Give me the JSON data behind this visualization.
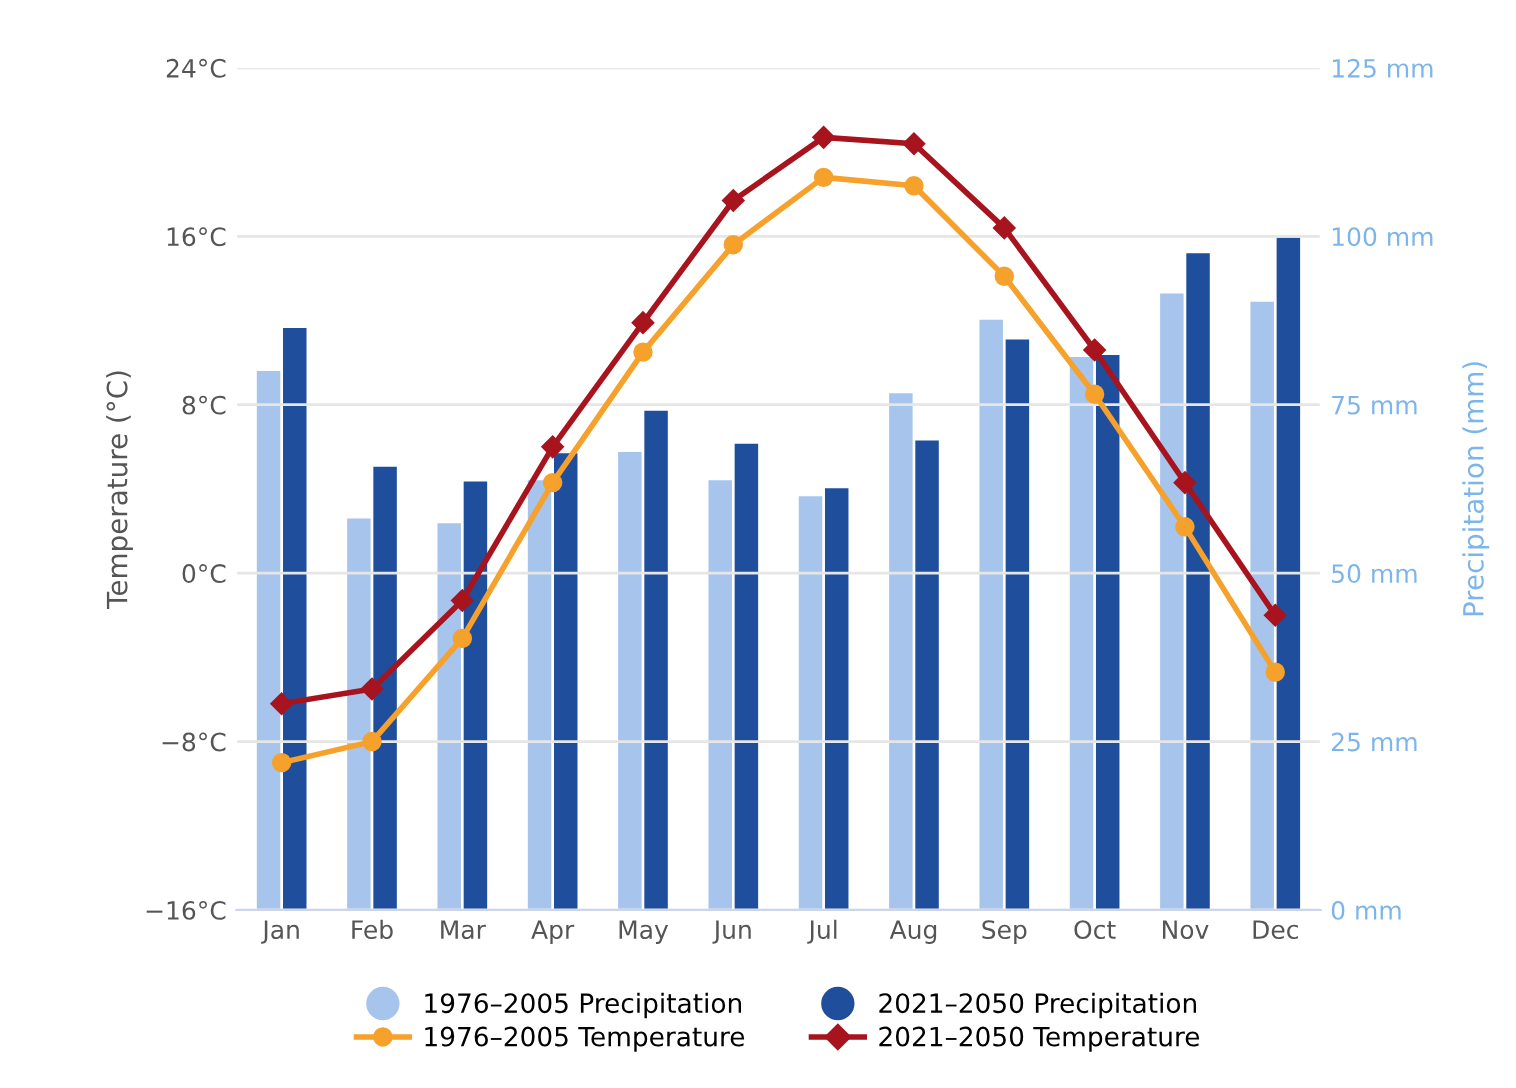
{
  "chart_data": {
    "type": "bar",
    "categories": [
      "Jan",
      "Feb",
      "Mar",
      "Apr",
      "May",
      "Jun",
      "Jul",
      "Aug",
      "Sep",
      "Oct",
      "Nov",
      "Dec"
    ],
    "ylabel": "Temperature (°C)",
    "y2label": "Precipitation (mm)",
    "ylim": [
      -16,
      24
    ],
    "yticks": [
      {
        "value": -16,
        "label": "−16°C"
      },
      {
        "value": -8,
        "label": "−8°C"
      },
      {
        "value": 0,
        "label": "0°C"
      },
      {
        "value": 8,
        "label": "8°C"
      },
      {
        "value": 16,
        "label": "16°C"
      },
      {
        "value": 24,
        "label": "24°C"
      }
    ],
    "y2lim": [
      0,
      125
    ],
    "y2ticks": [
      {
        "value": 0,
        "label": "0 mm"
      },
      {
        "value": 25,
        "label": "25 mm"
      },
      {
        "value": 50,
        "label": "50 mm"
      },
      {
        "value": 75,
        "label": "75 mm"
      },
      {
        "value": 100,
        "label": "100 mm"
      },
      {
        "value": 125,
        "label": "125 mm"
      }
    ],
    "grid": "y",
    "legend": "bottom",
    "series": [
      {
        "name": "1976–2005 Precipitation",
        "axis": "y2",
        "color": "#a6c4ec",
        "values": [
          80.0,
          58.1,
          57.4,
          63.8,
          68.0,
          63.8,
          61.4,
          76.7,
          87.6,
          82.1,
          91.5,
          90.3
        ]
      },
      {
        "name": "2021–2050 Precipitation",
        "axis": "y2",
        "color": "#1f4e9c",
        "values": [
          86.4,
          65.8,
          63.6,
          67.8,
          74.1,
          69.2,
          62.6,
          69.7,
          84.7,
          82.4,
          97.5,
          99.8
        ]
      },
      {
        "name": "1976–2005 Temperature",
        "type": "line",
        "color": "#f5a12b",
        "marker": "circle",
        "values": [
          -9.0,
          -8.0,
          -3.1,
          4.3,
          10.5,
          15.6,
          18.8,
          18.4,
          14.1,
          8.5,
          2.2,
          -4.7
        ]
      },
      {
        "name": "2021–2050 Temperature",
        "type": "line",
        "color": "#a8141e",
        "marker": "diamond",
        "values": [
          -6.2,
          -5.5,
          -1.3,
          6.0,
          11.9,
          17.7,
          20.7,
          20.4,
          16.4,
          10.6,
          4.3,
          -2.0
        ]
      }
    ]
  }
}
